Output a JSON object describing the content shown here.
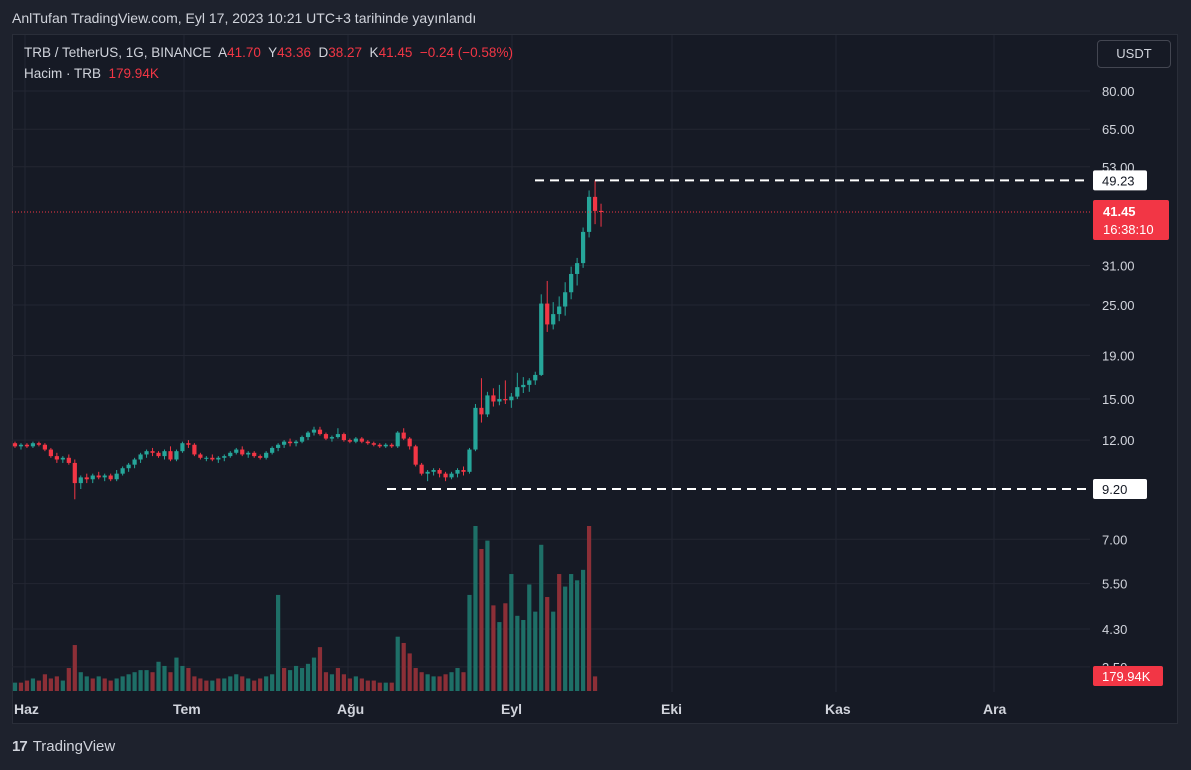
{
  "header": {
    "published": "AnlTufan TradingView.com, Eyl 17, 2023 10:21 UTC+3 tarihinde yayınlandı"
  },
  "legend": {
    "symbol": "TRB / TetherUS, 1G, BINANCE",
    "open_label": "A",
    "open": "41.70",
    "high_label": "Y",
    "high": "43.36",
    "low_label": "D",
    "low": "38.27",
    "close_label": "K",
    "close": "41.45",
    "change": "−0.24 (−0.58%)",
    "volume_label": "Hacim · TRB",
    "volume": "179.94K"
  },
  "currency_button": "USDT",
  "footer": {
    "logo_mark": "17",
    "logo_text": "TradingView"
  },
  "chart_data": {
    "type": "candlestick",
    "y_scale": "log",
    "y_ticks": [
      "80.00",
      "65.00",
      "53.00",
      "31.00",
      "25.00",
      "19.00",
      "15.00",
      "12.00",
      "7.00",
      "5.50",
      "4.30",
      "3.50"
    ],
    "x_ticks": [
      "Haz",
      "Tem",
      "Ağu",
      "Eyl",
      "Eki",
      "Kas",
      "Ara"
    ],
    "levels": [
      {
        "label": "49.23",
        "value": 49.23
      },
      {
        "label": "9.20",
        "value": 9.2
      }
    ],
    "last_price": {
      "label": "41.45",
      "value": 41.45,
      "countdown": "16:38:10"
    },
    "last_volume_label": "179.94K",
    "colors": {
      "up": "#26a69a",
      "down": "#f23645",
      "up_vol": "#1e6f67",
      "down_vol": "#8c2f37",
      "background": "#161a25",
      "grid": "#232632"
    },
    "candles": [
      [
        11.8,
        11.9,
        11.5,
        11.6
      ],
      [
        11.6,
        11.8,
        11.4,
        11.7
      ],
      [
        11.7,
        11.8,
        11.5,
        11.6
      ],
      [
        11.6,
        11.9,
        11.5,
        11.8
      ],
      [
        11.8,
        11.9,
        11.6,
        11.7
      ],
      [
        11.7,
        11.8,
        11.3,
        11.4
      ],
      [
        11.4,
        11.5,
        10.9,
        11.0
      ],
      [
        11.0,
        11.2,
        10.6,
        10.8
      ],
      [
        10.8,
        11.0,
        10.6,
        10.9
      ],
      [
        10.9,
        11.1,
        10.5,
        10.6
      ],
      [
        10.6,
        10.8,
        8.7,
        9.5
      ],
      [
        9.5,
        9.9,
        9.2,
        9.8
      ],
      [
        9.8,
        10.0,
        9.5,
        9.7
      ],
      [
        9.7,
        10.0,
        9.5,
        9.9
      ],
      [
        9.9,
        10.1,
        9.7,
        9.8
      ],
      [
        9.8,
        10.0,
        9.6,
        9.9
      ],
      [
        9.9,
        10.0,
        9.6,
        9.7
      ],
      [
        9.7,
        10.2,
        9.6,
        10.0
      ],
      [
        10.0,
        10.4,
        9.9,
        10.3
      ],
      [
        10.3,
        10.6,
        10.1,
        10.5
      ],
      [
        10.5,
        10.9,
        10.3,
        10.8
      ],
      [
        10.8,
        11.2,
        10.6,
        11.1
      ],
      [
        11.1,
        11.4,
        10.9,
        11.3
      ],
      [
        11.3,
        11.5,
        11.0,
        11.2
      ],
      [
        11.2,
        11.3,
        10.9,
        11.0
      ],
      [
        11.0,
        11.4,
        10.8,
        11.3
      ],
      [
        11.3,
        11.6,
        10.7,
        10.8
      ],
      [
        10.8,
        11.4,
        10.7,
        11.3
      ],
      [
        11.3,
        11.9,
        11.2,
        11.8
      ],
      [
        11.8,
        12.0,
        11.5,
        11.7
      ],
      [
        11.7,
        11.8,
        11.0,
        11.1
      ],
      [
        11.1,
        11.2,
        10.8,
        10.9
      ],
      [
        10.9,
        11.0,
        10.7,
        10.9
      ],
      [
        10.9,
        11.1,
        10.7,
        10.8
      ],
      [
        10.8,
        11.0,
        10.6,
        10.9
      ],
      [
        10.9,
        11.1,
        10.7,
        11.0
      ],
      [
        11.0,
        11.3,
        10.9,
        11.2
      ],
      [
        11.2,
        11.5,
        11.1,
        11.4
      ],
      [
        11.4,
        11.6,
        11.0,
        11.1
      ],
      [
        11.1,
        11.3,
        10.9,
        11.2
      ],
      [
        11.2,
        11.3,
        10.9,
        11.0
      ],
      [
        11.0,
        11.1,
        10.8,
        10.9
      ],
      [
        10.9,
        11.3,
        10.8,
        11.2
      ],
      [
        11.2,
        11.6,
        11.1,
        11.5
      ],
      [
        11.5,
        11.8,
        11.3,
        11.7
      ],
      [
        11.7,
        12.0,
        11.5,
        11.9
      ],
      [
        11.9,
        12.1,
        11.6,
        11.8
      ],
      [
        11.8,
        12.0,
        11.6,
        11.9
      ],
      [
        11.9,
        12.3,
        11.8,
        12.2
      ],
      [
        12.2,
        12.6,
        12.0,
        12.5
      ],
      [
        12.5,
        12.9,
        12.3,
        12.7
      ],
      [
        12.7,
        12.9,
        12.3,
        12.4
      ],
      [
        12.4,
        12.5,
        12.0,
        12.1
      ],
      [
        12.1,
        12.3,
        11.9,
        12.2
      ],
      [
        12.2,
        12.8,
        12.1,
        12.4
      ],
      [
        12.4,
        12.5,
        11.9,
        12.0
      ],
      [
        12.0,
        12.1,
        11.8,
        11.9
      ],
      [
        11.9,
        12.2,
        11.8,
        12.1
      ],
      [
        12.1,
        12.2,
        11.8,
        11.9
      ],
      [
        11.9,
        12.0,
        11.7,
        11.8
      ],
      [
        11.8,
        11.9,
        11.6,
        11.7
      ],
      [
        11.7,
        11.8,
        11.5,
        11.6
      ],
      [
        11.6,
        11.8,
        11.5,
        11.7
      ],
      [
        11.7,
        11.8,
        11.5,
        11.6
      ],
      [
        11.6,
        12.6,
        11.5,
        12.5
      ],
      [
        12.5,
        12.8,
        12.0,
        12.1
      ],
      [
        12.1,
        12.2,
        11.4,
        11.6
      ],
      [
        11.6,
        11.7,
        10.4,
        10.5
      ],
      [
        10.5,
        10.6,
        9.9,
        10.0
      ],
      [
        10.0,
        10.2,
        9.6,
        10.1
      ],
      [
        10.1,
        10.3,
        9.9,
        10.2
      ],
      [
        10.2,
        10.3,
        9.8,
        10.0
      ],
      [
        10.0,
        10.1,
        9.6,
        9.8
      ],
      [
        9.8,
        10.1,
        9.7,
        10.0
      ],
      [
        10.0,
        10.3,
        9.8,
        10.2
      ],
      [
        10.2,
        10.4,
        9.9,
        10.1
      ],
      [
        10.1,
        11.5,
        10.0,
        11.4
      ],
      [
        11.4,
        14.6,
        11.3,
        14.3
      ],
      [
        14.3,
        16.8,
        13.2,
        13.8
      ],
      [
        13.8,
        15.6,
        13.6,
        15.3
      ],
      [
        15.3,
        15.9,
        14.4,
        14.8
      ],
      [
        14.8,
        16.2,
        14.5,
        15.0
      ],
      [
        15.0,
        16.6,
        14.6,
        14.9
      ],
      [
        14.9,
        15.5,
        14.3,
        15.2
      ],
      [
        15.2,
        17.3,
        15.0,
        16.0
      ],
      [
        16.0,
        16.9,
        15.5,
        16.2
      ],
      [
        16.2,
        16.8,
        15.6,
        16.6
      ],
      [
        16.6,
        17.4,
        16.2,
        17.1
      ],
      [
        17.1,
        26.5,
        17.0,
        25.2
      ],
      [
        25.2,
        28.5,
        21.6,
        22.5
      ],
      [
        22.5,
        25.4,
        21.9,
        23.8
      ],
      [
        23.8,
        26.2,
        22.9,
        24.8
      ],
      [
        24.8,
        28.3,
        23.6,
        26.8
      ],
      [
        26.8,
        30.8,
        25.8,
        29.6
      ],
      [
        29.6,
        32.3,
        27.8,
        31.4
      ],
      [
        31.4,
        38.1,
        30.6,
        37.2
      ],
      [
        37.2,
        46.6,
        36.1,
        45.0
      ],
      [
        45.0,
        49.23,
        38.8,
        41.7
      ],
      [
        41.7,
        43.36,
        38.27,
        41.45
      ]
    ],
    "volumes": [
      [
        0.4,
        1
      ],
      [
        0.4,
        0
      ],
      [
        0.5,
        0
      ],
      [
        0.6,
        1
      ],
      [
        0.5,
        0
      ],
      [
        0.8,
        0
      ],
      [
        0.6,
        0
      ],
      [
        0.7,
        0
      ],
      [
        0.5,
        1
      ],
      [
        1.1,
        0
      ],
      [
        2.2,
        0
      ],
      [
        0.9,
        1
      ],
      [
        0.7,
        1
      ],
      [
        0.6,
        0
      ],
      [
        0.7,
        1
      ],
      [
        0.6,
        0
      ],
      [
        0.5,
        0
      ],
      [
        0.6,
        1
      ],
      [
        0.7,
        1
      ],
      [
        0.8,
        1
      ],
      [
        0.9,
        1
      ],
      [
        1.0,
        1
      ],
      [
        1.0,
        1
      ],
      [
        0.9,
        0
      ],
      [
        1.4,
        1
      ],
      [
        1.2,
        1
      ],
      [
        0.9,
        0
      ],
      [
        1.6,
        1
      ],
      [
        1.2,
        1
      ],
      [
        1.1,
        0
      ],
      [
        0.7,
        0
      ],
      [
        0.6,
        0
      ],
      [
        0.5,
        0
      ],
      [
        0.5,
        1
      ],
      [
        0.6,
        0
      ],
      [
        0.6,
        1
      ],
      [
        0.7,
        1
      ],
      [
        0.8,
        1
      ],
      [
        0.7,
        0
      ],
      [
        0.6,
        1
      ],
      [
        0.5,
        0
      ],
      [
        0.6,
        0
      ],
      [
        0.7,
        1
      ],
      [
        0.8,
        1
      ],
      [
        4.6,
        1
      ],
      [
        1.1,
        0
      ],
      [
        1.0,
        1
      ],
      [
        1.2,
        1
      ],
      [
        1.1,
        1
      ],
      [
        1.3,
        1
      ],
      [
        1.6,
        1
      ],
      [
        2.1,
        0
      ],
      [
        0.9,
        0
      ],
      [
        0.8,
        1
      ],
      [
        1.1,
        0
      ],
      [
        0.8,
        0
      ],
      [
        0.6,
        0
      ],
      [
        0.7,
        1
      ],
      [
        0.6,
        0
      ],
      [
        0.5,
        0
      ],
      [
        0.5,
        0
      ],
      [
        0.4,
        0
      ],
      [
        0.4,
        1
      ],
      [
        0.4,
        0
      ],
      [
        2.6,
        1
      ],
      [
        2.3,
        0
      ],
      [
        1.8,
        0
      ],
      [
        1.1,
        0
      ],
      [
        0.9,
        0
      ],
      [
        0.8,
        1
      ],
      [
        0.7,
        1
      ],
      [
        0.7,
        0
      ],
      [
        0.8,
        0
      ],
      [
        0.9,
        1
      ],
      [
        1.1,
        1
      ],
      [
        0.9,
        0
      ],
      [
        4.6,
        1
      ],
      [
        7.9,
        1
      ],
      [
        6.8,
        0
      ],
      [
        7.2,
        1
      ],
      [
        4.1,
        0
      ],
      [
        3.3,
        1
      ],
      [
        4.2,
        0
      ],
      [
        5.6,
        1
      ],
      [
        3.6,
        1
      ],
      [
        3.4,
        1
      ],
      [
        5.1,
        1
      ],
      [
        3.8,
        1
      ],
      [
        7.0,
        1
      ],
      [
        4.5,
        0
      ],
      [
        3.8,
        1
      ],
      [
        5.6,
        0
      ],
      [
        5.0,
        1
      ],
      [
        5.6,
        1
      ],
      [
        5.3,
        1
      ],
      [
        5.8,
        1
      ],
      [
        7.9,
        0
      ],
      [
        0.7,
        0
      ]
    ]
  }
}
